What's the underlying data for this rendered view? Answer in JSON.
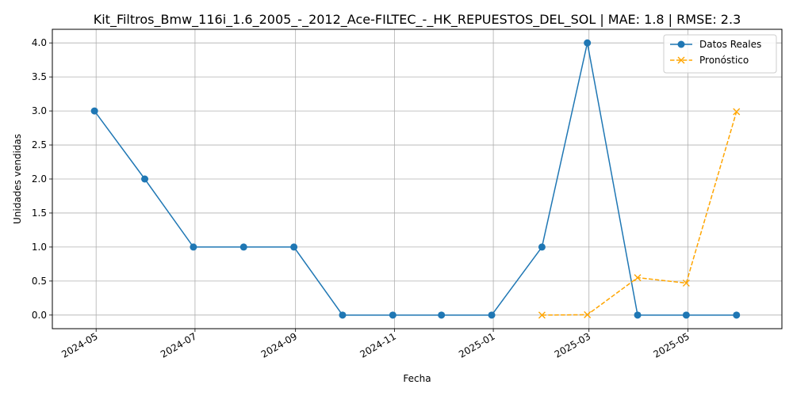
{
  "chart_data": {
    "type": "line",
    "title": "Kit_Filtros_Bmw_116i_1.6_2005_-_2012_Ace-FILTEC_-_HK_REPUESTOS_DEL_SOL | MAE: 1.8 | RMSE: 2.3",
    "xlabel": "Fecha",
    "ylabel": "Unidades vendidas",
    "x_ticks": [
      "2024-05",
      "2024-07",
      "2024-09",
      "2024-11",
      "2025-01",
      "2025-03",
      "2025-05"
    ],
    "y_ticks": [
      "0.0",
      "0.5",
      "1.0",
      "1.5",
      "2.0",
      "2.5",
      "3.0",
      "3.5",
      "4.0"
    ],
    "ylim": [
      -0.2,
      4.2
    ],
    "xlim": [
      "2024-04-04",
      "2025-06-28"
    ],
    "grid": true,
    "legend_position": "top-right",
    "series": [
      {
        "name": "Datos Reales",
        "color": "#1f77b4",
        "style": "solid",
        "marker": "circle",
        "x": [
          "2024-04-30",
          "2024-05-31",
          "2024-06-30",
          "2024-07-31",
          "2024-08-31",
          "2024-09-30",
          "2024-10-31",
          "2024-11-30",
          "2024-12-31",
          "2025-01-31",
          "2025-02-28",
          "2025-03-31",
          "2025-04-30",
          "2025-05-31"
        ],
        "values": [
          3,
          2,
          1,
          1,
          1,
          0,
          0,
          0,
          0,
          1,
          4,
          0,
          0,
          0
        ]
      },
      {
        "name": "Pronóstico",
        "color": "#ffa500",
        "style": "dashed",
        "marker": "x",
        "x": [
          "2025-01-31",
          "2025-02-28",
          "2025-03-31",
          "2025-04-30",
          "2025-05-31"
        ],
        "values": [
          0.0,
          0.005,
          0.55,
          0.47,
          2.99
        ]
      }
    ]
  }
}
